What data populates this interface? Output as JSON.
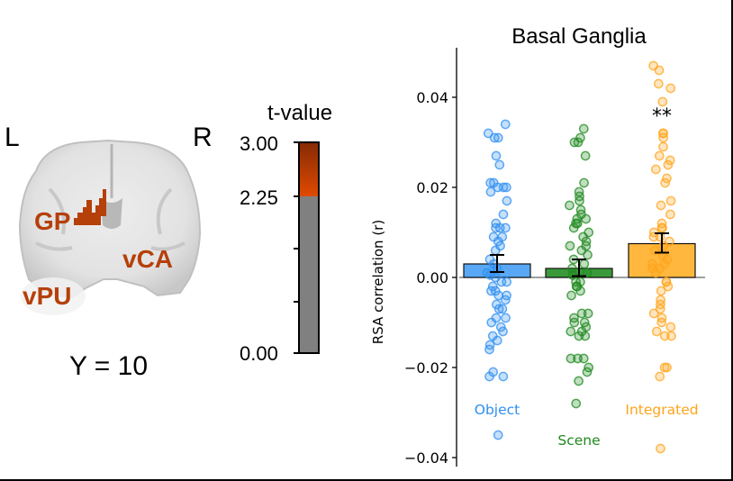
{
  "brain_panel": {
    "left_label": "L",
    "right_label": "R",
    "coordinate_label": "Y = 10",
    "roi_labels": [
      "GP",
      "vCA",
      "vPU"
    ],
    "roi_color": "#b5400a"
  },
  "colorbar": {
    "title": "t-value",
    "ticks": [
      "3.00",
      "2.25",
      "0.00"
    ],
    "range": [
      0.0,
      3.0
    ],
    "threshold": 2.25,
    "colors": {
      "low": "#808080",
      "thresh": "#e04a00",
      "high": "#862a05"
    }
  },
  "chart_data": {
    "type": "bar",
    "title": "Basal Ganglia",
    "xlabel": "",
    "ylabel": "RSA correlation (r)",
    "ylim": [
      -0.042,
      0.051
    ],
    "yticks": [
      0.04,
      0.02,
      0.0,
      -0.02,
      -0.04
    ],
    "ytick_labels": [
      "0.04",
      "0.02",
      "0.00",
      "−0.02",
      "−0.04"
    ],
    "grid": false,
    "categories": [
      "Object",
      "Scene",
      "Integrated"
    ],
    "category_colors": [
      "#2f8ff0",
      "#1f8a1f",
      "#ffa41c"
    ],
    "bar_fill_colors": [
      "#58a8f5",
      "#3a9a3a",
      "#ffb83d"
    ],
    "values": [
      0.003,
      0.002,
      0.0075
    ],
    "error_bars": [
      [
        0.0012,
        0.005
      ],
      [
        0.0003,
        0.004
      ],
      [
        0.0055,
        0.0098
      ]
    ],
    "significance": [
      "",
      "",
      "**"
    ],
    "points": [
      [
        0.034,
        0.032,
        0.031,
        0.031,
        0.027,
        0.025,
        0.021,
        0.021,
        0.02,
        0.02,
        0.02,
        0.019,
        0.017,
        0.014,
        0.012,
        0.011,
        0.011,
        0.011,
        0.009,
        0.009,
        0.008,
        0.007,
        0.006,
        0.004,
        0.003,
        0.002,
        0.001,
        0.0005,
        0.0,
        -0.001,
        -0.001,
        -0.002,
        -0.003,
        -0.003,
        -0.004,
        -0.004,
        -0.005,
        -0.006,
        -0.007,
        -0.007,
        -0.009,
        -0.009,
        -0.01,
        -0.011,
        -0.012,
        -0.013,
        -0.014,
        -0.015,
        -0.016,
        -0.021,
        -0.022,
        -0.022,
        -0.035
      ],
      [
        0.033,
        0.031,
        0.03,
        0.03,
        0.027,
        0.021,
        0.019,
        0.018,
        0.017,
        0.016,
        0.015,
        0.014,
        0.013,
        0.013,
        0.012,
        0.012,
        0.011,
        0.01,
        0.009,
        0.008,
        0.007,
        0.007,
        0.006,
        0.005,
        0.004,
        0.003,
        0.002,
        0.001,
        0.0005,
        -0.001,
        -0.001,
        -0.002,
        -0.002,
        -0.003,
        -0.004,
        -0.008,
        -0.008,
        -0.009,
        -0.01,
        -0.01,
        -0.011,
        -0.012,
        -0.012,
        -0.013,
        -0.013,
        -0.018,
        -0.018,
        -0.018,
        -0.02,
        -0.021,
        -0.023,
        -0.028
      ],
      [
        0.047,
        0.046,
        0.043,
        0.042,
        0.039,
        0.032,
        0.032,
        0.031,
        0.029,
        0.027,
        0.026,
        0.025,
        0.024,
        0.022,
        0.021,
        0.017,
        0.016,
        0.014,
        0.012,
        0.011,
        0.011,
        0.01,
        0.009,
        0.009,
        0.008,
        0.007,
        0.006,
        0.005,
        0.004,
        0.003,
        0.003,
        0.002,
        0.002,
        0.001,
        -0.001,
        -0.001,
        -0.002,
        -0.003,
        -0.005,
        -0.006,
        -0.007,
        -0.008,
        -0.009,
        -0.01,
        -0.011,
        -0.012,
        -0.013,
        -0.013,
        -0.02,
        -0.02,
        -0.022,
        -0.038
      ]
    ]
  }
}
